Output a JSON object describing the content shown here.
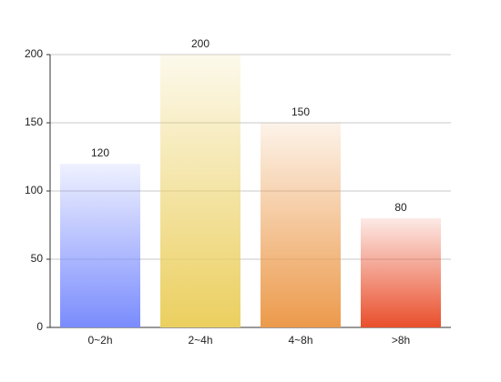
{
  "chart_data": {
    "type": "bar",
    "categories": [
      "0~2h",
      "2~4h",
      "4~8h",
      ">8h"
    ],
    "values": [
      120,
      200,
      150,
      80
    ],
    "colors": [
      "#7a8cfd",
      "#ebcf5f",
      "#ec9a4b",
      "#e94f2c"
    ],
    "ylim": [
      0,
      200
    ],
    "yticks": [
      0,
      50,
      100,
      150,
      200
    ],
    "grid": true
  }
}
